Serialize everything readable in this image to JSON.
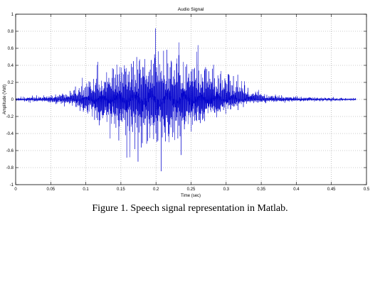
{
  "caption": "Figure 1. Speech signal representation in Matlab.",
  "colors": {
    "signal": "#0000cc",
    "axes": "#000000",
    "grid": "#9a9a9a",
    "background": "#ffffff"
  },
  "chart_data": {
    "type": "line",
    "title": "Audio Signal",
    "xlabel": "Time (sec)",
    "ylabel": "Amplitude (Volt)",
    "xlim": [
      0,
      0.5
    ],
    "ylim": [
      -1,
      1
    ],
    "grid": true,
    "xticks": [
      0,
      0.05,
      0.1,
      0.15,
      0.2,
      0.25,
      0.3,
      0.35,
      0.4,
      0.45,
      0.5
    ],
    "xtick_labels": [
      "0",
      "0.05",
      "0.1",
      "0.15",
      "0.2",
      "0.25",
      "0.3",
      "0.35",
      "0.4",
      "0.45",
      "0.5"
    ],
    "yticks": [
      -1,
      -0.8,
      -0.6,
      -0.4,
      -0.2,
      0,
      0.2,
      0.4,
      0.6,
      0.8,
      1
    ],
    "ytick_labels": [
      "-1",
      "-0.8",
      "-0.6",
      "-0.4",
      "-0.2",
      "0",
      "0.2",
      "0.4",
      "0.6",
      "0.8",
      "1"
    ],
    "series": [
      {
        "color": "#0000cc",
        "x_range": [
          0,
          0.485
        ],
        "envelope": {
          "t": [
            0,
            0.04,
            0.08,
            0.1,
            0.12,
            0.14,
            0.16,
            0.18,
            0.2,
            0.22,
            0.24,
            0.26,
            0.28,
            0.3,
            0.32,
            0.34,
            0.36,
            0.4,
            0.45,
            0.485
          ],
          "upper": [
            0.03,
            0.06,
            0.15,
            0.3,
            0.5,
            0.62,
            0.72,
            0.8,
            0.88,
            0.82,
            0.72,
            0.65,
            0.58,
            0.48,
            0.35,
            0.2,
            0.08,
            0.05,
            0.03,
            0.02
          ],
          "lower": [
            -0.03,
            -0.05,
            -0.1,
            -0.3,
            -0.45,
            -0.55,
            -0.7,
            -0.82,
            -0.88,
            -0.8,
            -0.7,
            -0.55,
            -0.35,
            -0.2,
            -0.12,
            -0.06,
            -0.05,
            -0.04,
            -0.03,
            -0.02
          ]
        }
      }
    ]
  }
}
